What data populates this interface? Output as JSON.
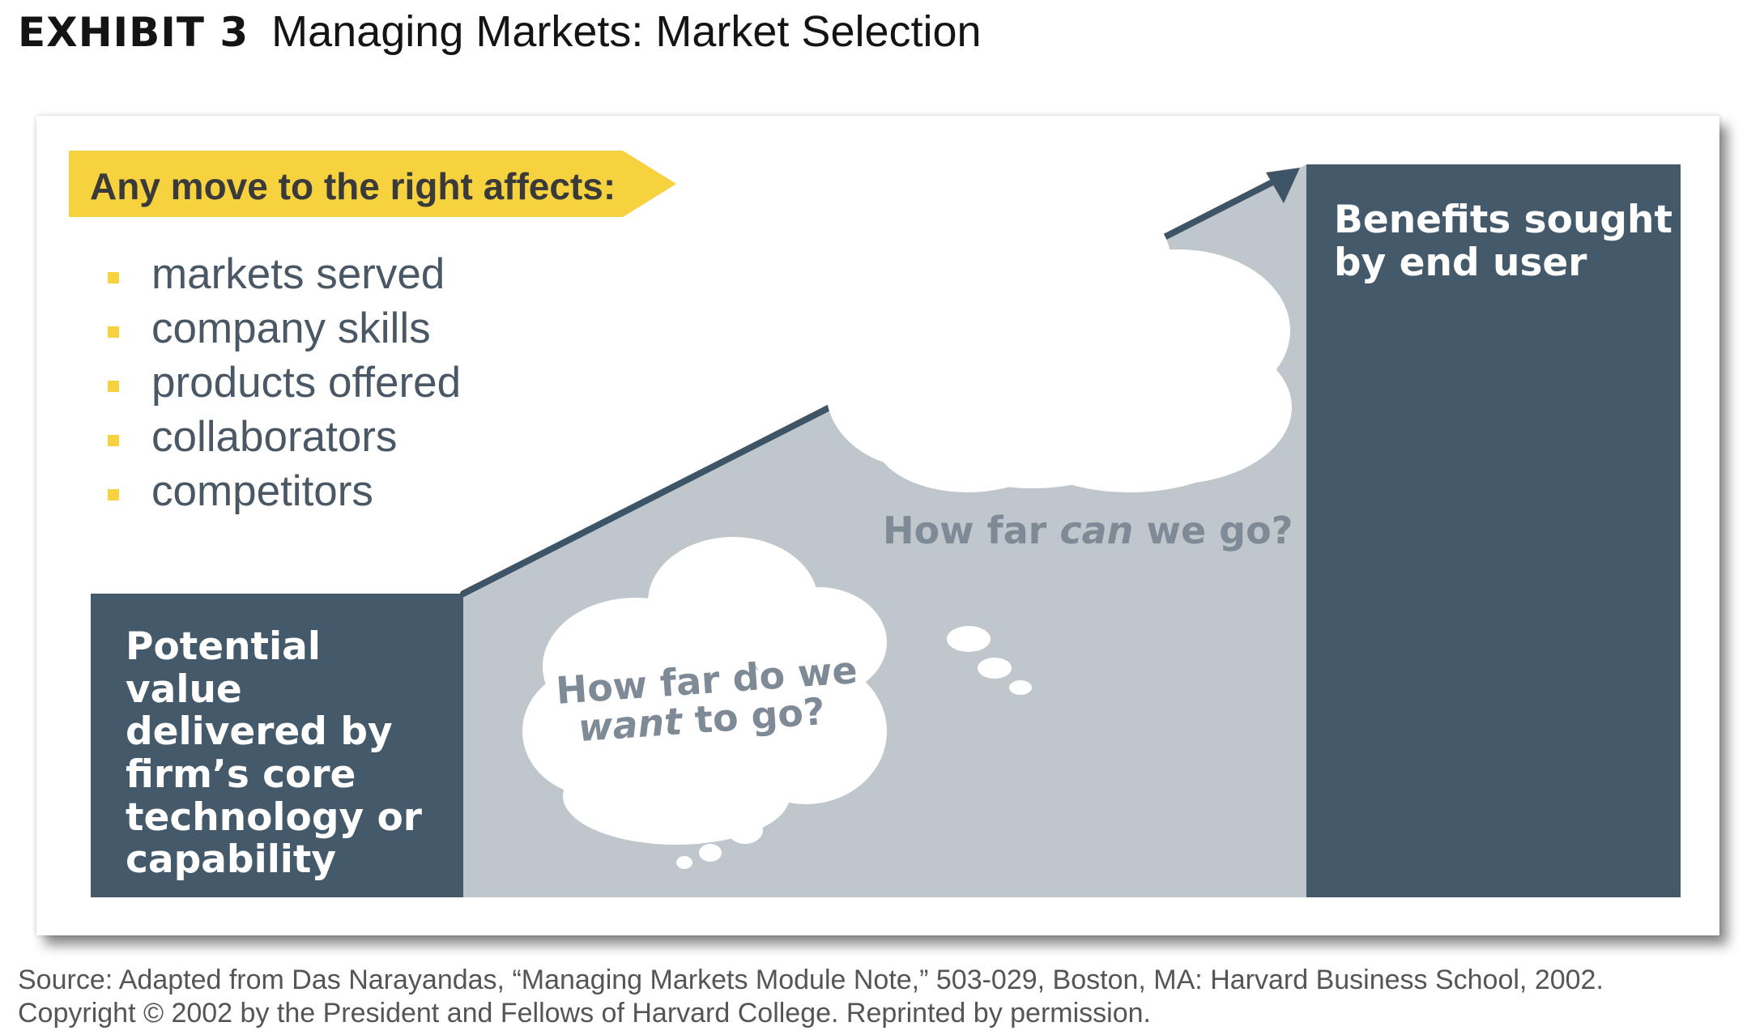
{
  "header": {
    "exhibit_label": "EXHIBIT 3",
    "title": "Managing Markets: Market Selection"
  },
  "diagram": {
    "banner": "Any move to the right affects:",
    "bullets": [
      "markets served",
      "company skills",
      "products offered",
      "collaborators",
      "competitors"
    ],
    "left_box": "Potential value delivered by firm’s core technology or capability",
    "right_box": "Benefits sought by end user",
    "cloud_upper": {
      "prefix": "How far ",
      "emphasis": "can",
      "suffix": " we go?"
    },
    "cloud_lower": {
      "line1": "How far do we",
      "emphasis": "want",
      "suffix": " to go?"
    },
    "colors": {
      "banner": "#f6d23f",
      "dark_box": "#44596a",
      "wedge": "#bfc6cc",
      "arrow": "#3d5566",
      "cloud_text": "#7e8a95"
    }
  },
  "footer": {
    "source_line1": "Source: Adapted from Das Narayandas, “Managing Markets Module Note,” 503-029, Boston, MA: Harvard Business School, 2002.",
    "source_line2": "Copyright © 2002 by the President and Fellows of Harvard College. Reprinted by permission."
  }
}
